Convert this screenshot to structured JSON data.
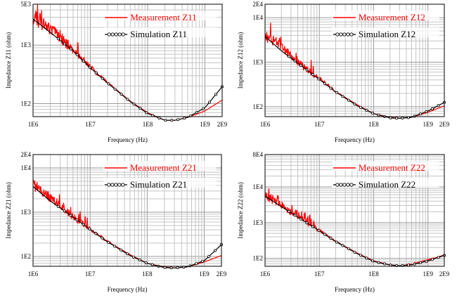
{
  "chart_data": [
    {
      "type": "line",
      "xlabel": "Frequency (Hz)",
      "ylabel": "Impedance Z11 (ohm)",
      "x_scale": "log",
      "y_scale": "log",
      "xlim": [
        1000000,
        2000000000
      ],
      "ylim": [
        60,
        5000
      ],
      "xticks": [
        {
          "v": 1000000,
          "label": "1E6"
        },
        {
          "v": 10000000,
          "label": "1E7"
        },
        {
          "v": 100000000,
          "label": "1E8"
        },
        {
          "v": 1000000000,
          "label": "1E9"
        },
        {
          "v": 2000000000,
          "label": "2E9"
        }
      ],
      "yticks": [
        {
          "v": 100,
          "label": "1E2"
        },
        {
          "v": 1000,
          "label": "1E3"
        },
        {
          "v": 5000,
          "label": "5E3"
        }
      ],
      "grid": true,
      "legend_position": "top-right",
      "series": [
        {
          "name": "Measurement Z11",
          "color": "#ff0000",
          "style": "line",
          "x": [
            1000000,
            2000000,
            5000000,
            10000000,
            20000000,
            50000000,
            100000000,
            200000000,
            300000000,
            500000000,
            1000000000,
            2000000000
          ],
          "values": [
            3200,
            1900,
            820,
            420,
            230,
            110,
            70,
            52,
            52,
            58,
            75,
            115
          ]
        },
        {
          "name": "Simulation Z11",
          "color": "#000000",
          "style": "circle-markers",
          "x": [
            1000000,
            2000000,
            5000000,
            10000000,
            20000000,
            50000000,
            100000000,
            200000000,
            300000000,
            500000000,
            1000000000,
            2000000000
          ],
          "values": [
            2800,
            1650,
            800,
            410,
            225,
            108,
            68,
            52,
            52,
            58,
            85,
            195
          ]
        }
      ]
    },
    {
      "type": "line",
      "xlabel": "Frequency (Hz)",
      "ylabel": "Impedance Z12 (ohm)",
      "x_scale": "log",
      "y_scale": "log",
      "xlim": [
        1000000,
        2000000000
      ],
      "ylim": [
        60,
        20000
      ],
      "xticks": [
        {
          "v": 1000000,
          "label": "1E6"
        },
        {
          "v": 10000000,
          "label": "1E7"
        },
        {
          "v": 100000000,
          "label": "1E8"
        },
        {
          "v": 1000000000,
          "label": "1E9"
        },
        {
          "v": 2000000000,
          "label": "2E9"
        }
      ],
      "yticks": [
        {
          "v": 100,
          "label": "1E2"
        },
        {
          "v": 1000,
          "label": "1E3"
        },
        {
          "v": 10000,
          "label": "1E4"
        },
        {
          "v": 20000,
          "label": "2E4"
        }
      ],
      "grid": true,
      "legend_position": "top-right",
      "series": [
        {
          "name": "Measurement Z12",
          "color": "#ff0000",
          "style": "line",
          "x": [
            1000000,
            2000000,
            5000000,
            10000000,
            20000000,
            50000000,
            100000000,
            200000000,
            300000000,
            500000000,
            1000000000,
            2000000000
          ],
          "values": [
            4000,
            2200,
            800,
            420,
            220,
            110,
            70,
            58,
            55,
            58,
            75,
            105
          ]
        },
        {
          "name": "Simulation Z12",
          "color": "#000000",
          "style": "circle-markers",
          "x": [
            1000000,
            2000000,
            5000000,
            10000000,
            20000000,
            50000000,
            100000000,
            200000000,
            300000000,
            500000000,
            1000000000,
            2000000000
          ],
          "values": [
            3800,
            1800,
            780,
            410,
            215,
            105,
            70,
            56,
            55,
            58,
            80,
            125
          ]
        }
      ]
    },
    {
      "type": "line",
      "xlabel": "Frequency (Hz)",
      "ylabel": "Impedance Z21 (ohm)",
      "x_scale": "log",
      "y_scale": "log",
      "xlim": [
        1000000,
        2000000000
      ],
      "ylim": [
        60,
        20000
      ],
      "xticks": [
        {
          "v": 1000000,
          "label": "1E6"
        },
        {
          "v": 10000000,
          "label": "1E7"
        },
        {
          "v": 100000000,
          "label": "1E8"
        },
        {
          "v": 1000000000,
          "label": "1E9"
        },
        {
          "v": 2000000000,
          "label": "2E9"
        }
      ],
      "yticks": [
        {
          "v": 100,
          "label": "1E2"
        },
        {
          "v": 1000,
          "label": "1E3"
        },
        {
          "v": 10000,
          "label": "1E4"
        },
        {
          "v": 20000,
          "label": "2E4"
        }
      ],
      "grid": true,
      "legend_position": "top-right",
      "series": [
        {
          "name": "Measurement Z21",
          "color": "#ff0000",
          "style": "line",
          "x": [
            1000000,
            2000000,
            5000000,
            10000000,
            20000000,
            50000000,
            100000000,
            200000000,
            300000000,
            500000000,
            1000000000,
            2000000000
          ],
          "values": [
            4000,
            2200,
            800,
            420,
            220,
            110,
            70,
            58,
            55,
            58,
            75,
            105
          ]
        },
        {
          "name": "Simulation Z21",
          "color": "#000000",
          "style": "circle-markers",
          "x": [
            1000000,
            2000000,
            5000000,
            10000000,
            20000000,
            50000000,
            100000000,
            200000000,
            300000000,
            500000000,
            1000000000,
            2000000000
          ],
          "values": [
            3800,
            1800,
            780,
            410,
            215,
            105,
            70,
            56,
            55,
            58,
            80,
            185
          ]
        }
      ]
    },
    {
      "type": "line",
      "xlabel": "Frequency (Hz)",
      "ylabel": "Impedance Z22 (ohm)",
      "x_scale": "log",
      "y_scale": "log",
      "xlim": [
        1000000,
        2000000000
      ],
      "ylim": [
        60,
        80000
      ],
      "xticks": [
        {
          "v": 1000000,
          "label": "1E6"
        },
        {
          "v": 10000000,
          "label": "1E7"
        },
        {
          "v": 100000000,
          "label": "1E8"
        },
        {
          "v": 1000000000,
          "label": "1E9"
        },
        {
          "v": 2000000000,
          "label": "2E9"
        }
      ],
      "yticks": [
        {
          "v": 100,
          "label": "1E2"
        },
        {
          "v": 1000,
          "label": "1E3"
        },
        {
          "v": 10000,
          "label": "1E4"
        },
        {
          "v": 80000,
          "label": "8E4"
        }
      ],
      "grid": true,
      "legend_position": "top-right",
      "series": [
        {
          "name": "Measurement Z22",
          "color": "#ff0000",
          "style": "line",
          "x": [
            1000000,
            2000000,
            5000000,
            10000000,
            20000000,
            50000000,
            100000000,
            200000000,
            300000000,
            500000000,
            1000000000,
            2000000000
          ],
          "values": [
            6000,
            3000,
            1200,
            600,
            300,
            140,
            85,
            66,
            62,
            68,
            88,
            125
          ]
        },
        {
          "name": "Simulation Z22",
          "color": "#000000",
          "style": "circle-markers",
          "x": [
            1000000,
            2000000,
            5000000,
            10000000,
            20000000,
            50000000,
            100000000,
            200000000,
            300000000,
            500000000,
            1000000000,
            2000000000
          ],
          "values": [
            5500,
            2800,
            1150,
            590,
            295,
            135,
            82,
            65,
            62,
            66,
            85,
            120
          ]
        }
      ]
    }
  ]
}
